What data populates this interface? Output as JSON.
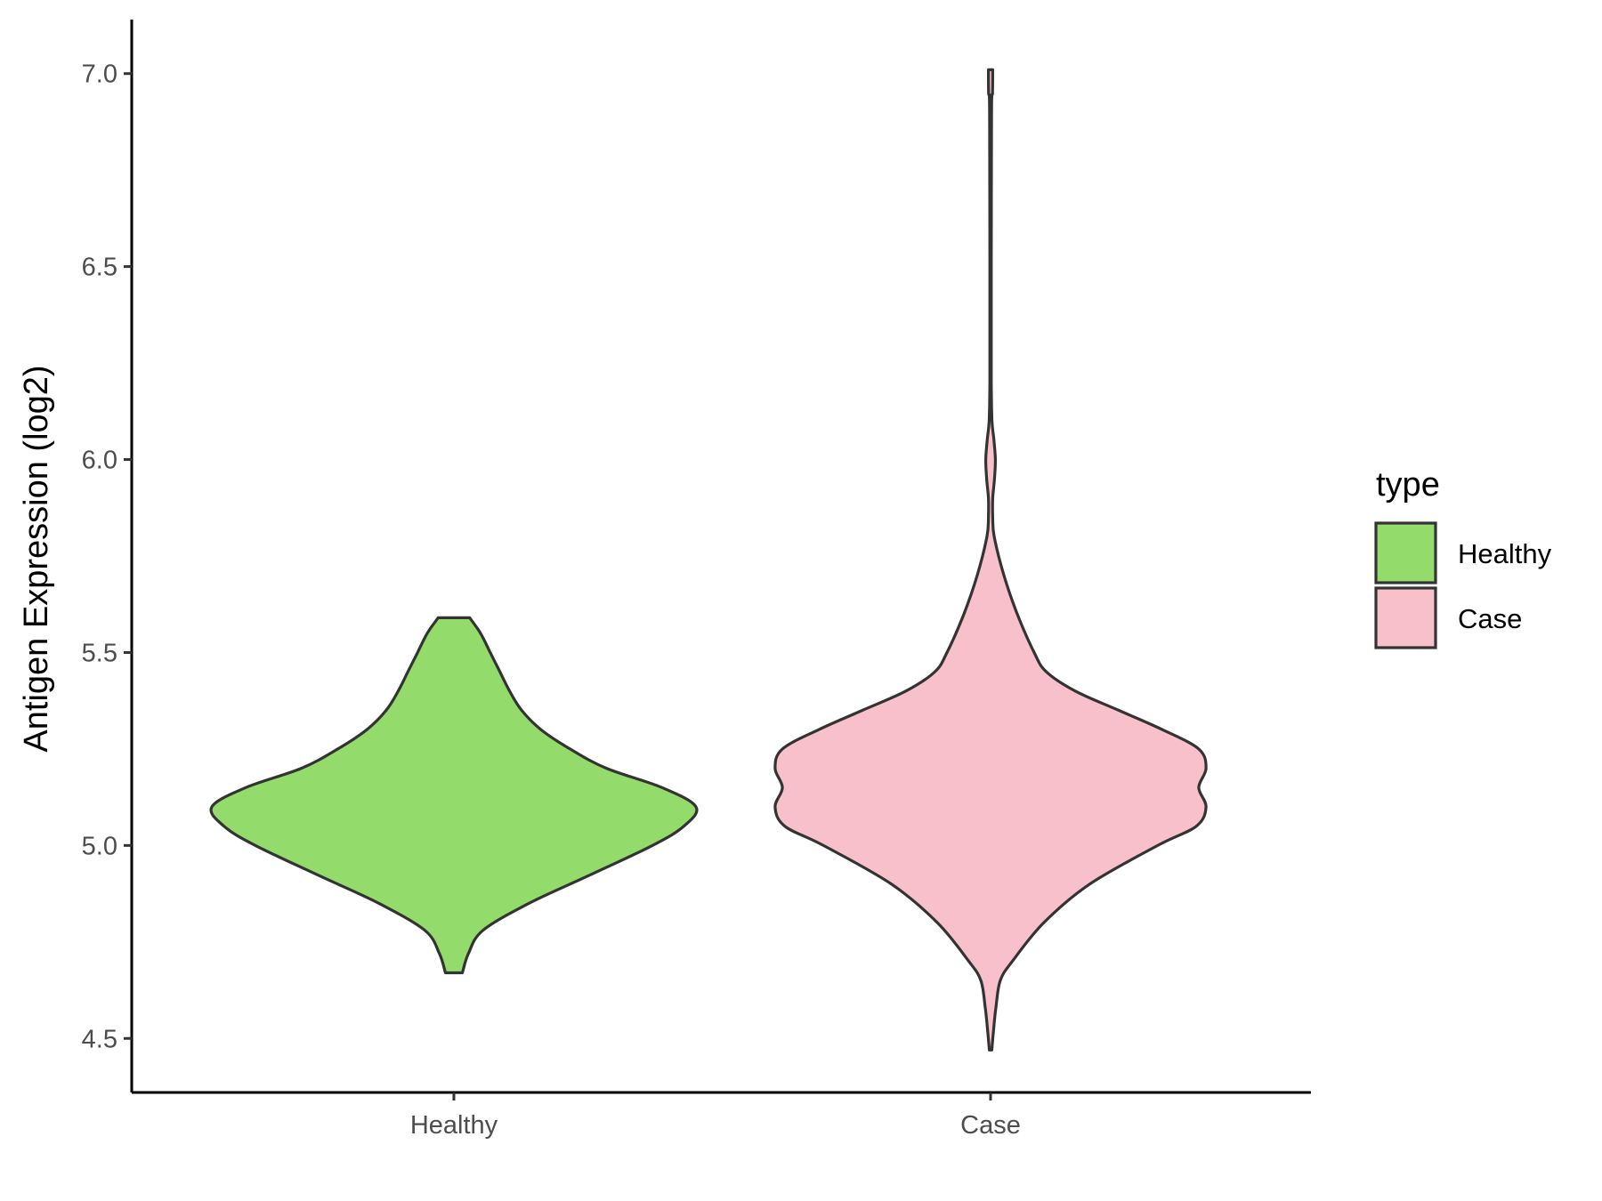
{
  "chart_data": {
    "type": "violin",
    "ylabel": "Antigen Expression (log2)",
    "xlabel": "",
    "ylim": [
      4.36,
      7.14
    ],
    "y_ticks": [
      "4.5",
      "5.0",
      "5.5",
      "6.0",
      "6.5",
      "7.0"
    ],
    "categories": [
      "Healthy",
      "Case"
    ],
    "legend": {
      "title": "type",
      "position": "right"
    },
    "grid": false,
    "series": [
      {
        "name": "Healthy",
        "color": "#93DC6B",
        "y_min": 4.67,
        "y_max": 5.59,
        "density_profile": [
          [
            4.67,
            0.035
          ],
          [
            4.72,
            0.06
          ],
          [
            4.78,
            0.12
          ],
          [
            4.85,
            0.31
          ],
          [
            4.92,
            0.55
          ],
          [
            5.0,
            0.82
          ],
          [
            5.05,
            0.95
          ],
          [
            5.1,
            1.0
          ],
          [
            5.15,
            0.86
          ],
          [
            5.2,
            0.63
          ],
          [
            5.25,
            0.48
          ],
          [
            5.3,
            0.36
          ],
          [
            5.35,
            0.28
          ],
          [
            5.4,
            0.23
          ],
          [
            5.45,
            0.19
          ],
          [
            5.5,
            0.15
          ],
          [
            5.55,
            0.11
          ],
          [
            5.59,
            0.065
          ]
        ]
      },
      {
        "name": "Case",
        "color": "#F8C0CA",
        "y_min": 4.47,
        "y_max": 7.01,
        "density_profile": [
          [
            4.47,
            0.005
          ],
          [
            4.52,
            0.012
          ],
          [
            4.58,
            0.022
          ],
          [
            4.65,
            0.04
          ],
          [
            4.7,
            0.09
          ],
          [
            4.8,
            0.22
          ],
          [
            4.9,
            0.41
          ],
          [
            5.0,
            0.69
          ],
          [
            5.05,
            0.85
          ],
          [
            5.1,
            0.89
          ],
          [
            5.15,
            0.86
          ],
          [
            5.2,
            0.89
          ],
          [
            5.25,
            0.86
          ],
          [
            5.3,
            0.71
          ],
          [
            5.35,
            0.53
          ],
          [
            5.4,
            0.35
          ],
          [
            5.45,
            0.23
          ],
          [
            5.5,
            0.18
          ],
          [
            5.6,
            0.11
          ],
          [
            5.7,
            0.055
          ],
          [
            5.8,
            0.015
          ],
          [
            5.85,
            0.009
          ],
          [
            5.9,
            0.009
          ],
          [
            5.95,
            0.016
          ],
          [
            6.0,
            0.02
          ],
          [
            6.05,
            0.014
          ],
          [
            6.1,
            0.006
          ],
          [
            6.2,
            0.003
          ],
          [
            6.5,
            0.003
          ],
          [
            6.9,
            0.004
          ],
          [
            6.95,
            0.008
          ],
          [
            7.01,
            0.009
          ]
        ]
      }
    ]
  }
}
